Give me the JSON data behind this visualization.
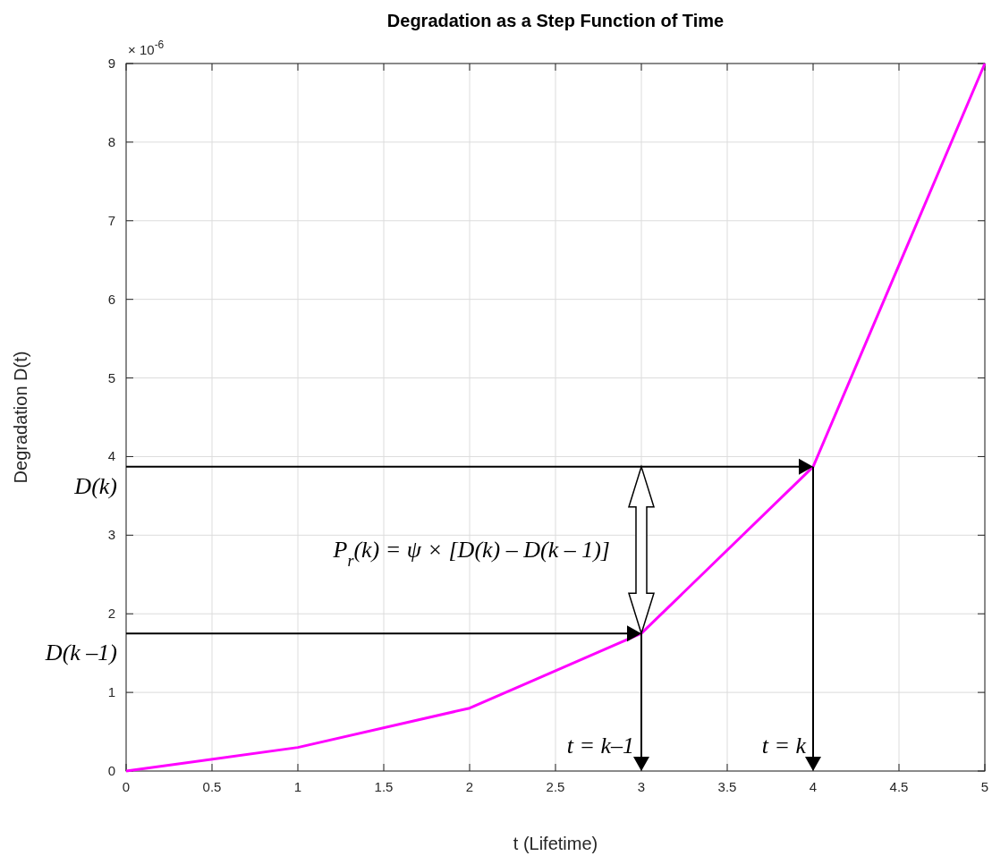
{
  "chart_data": {
    "type": "line",
    "title": "Degradation as a Step Function of Time",
    "xlabel": "t (Lifetime)",
    "ylabel": "Degradation D(t)",
    "x": [
      0,
      1,
      2,
      3,
      4,
      5
    ],
    "series": [
      {
        "color": "#ff00ff",
        "values": [
          0,
          0.3,
          0.8,
          1.75,
          3.87,
          9
        ]
      }
    ],
    "xlim": [
      0,
      5
    ],
    "ylim": [
      0,
      9
    ],
    "xticks": [
      0,
      0.5,
      1,
      1.5,
      2,
      2.5,
      3,
      3.5,
      4,
      4.5,
      5
    ],
    "yticks": [
      0,
      1,
      2,
      3,
      4,
      5,
      6,
      7,
      8,
      9
    ],
    "grid": true,
    "marker": "none",
    "line_style": "solid",
    "annotations": [
      "D(k –1)",
      "D(k)",
      {
        "text": "t = k–1",
        "x": 3,
        "y": 1.75
      },
      {
        "text": "t = k",
        "x": 4,
        "y": 3.87
      },
      "P$_{r}$(k) = ψ × [D(k) – D(k – 1)]",
      "× 10$^{-6}$"
    ]
  }
}
